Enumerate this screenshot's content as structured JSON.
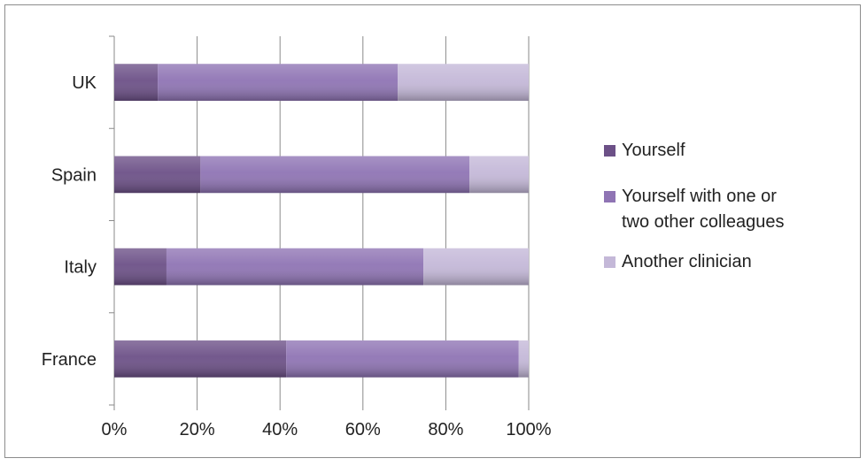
{
  "chart_data": {
    "type": "bar",
    "orientation": "horizontal",
    "stacked": "percent",
    "title": "",
    "xlabel": "",
    "ylabel": "",
    "categories": [
      "UK",
      "Spain",
      "Italy",
      "France"
    ],
    "series": [
      {
        "name": "Yourself",
        "values": [
          10.5,
          20.8,
          12.6,
          41.5
        ],
        "color": "#6c5087"
      },
      {
        "name": "Yourself with one or two other colleagues",
        "values": [
          57.9,
          64.9,
          62.0,
          56.1
        ],
        "color": "#8f74b4"
      },
      {
        "name": "Another clinician",
        "values": [
          31.6,
          14.3,
          25.4,
          2.4
        ],
        "color": "#c4b8d8"
      }
    ],
    "xlim": [
      0,
      100
    ],
    "xticks": [
      "0%",
      "20%",
      "40%",
      "60%",
      "80%",
      "100%"
    ],
    "grid": true,
    "legend_position": "right"
  }
}
